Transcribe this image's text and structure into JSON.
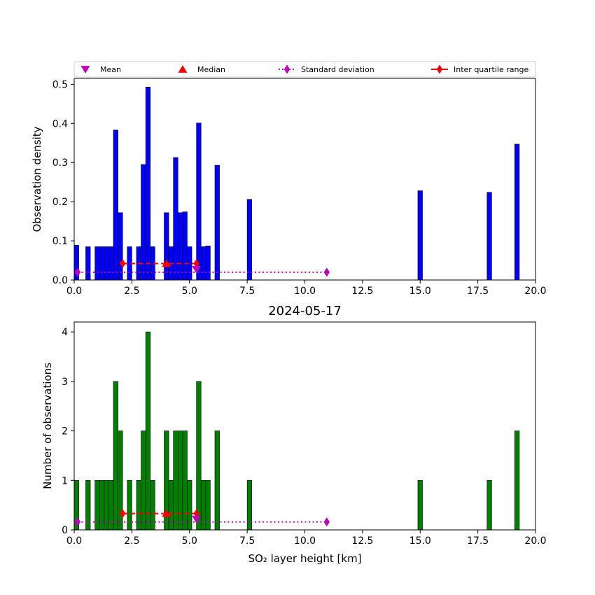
{
  "chart_data": [
    {
      "type": "bar",
      "title": "",
      "xlabel": "",
      "ylabel": "Observation density",
      "xlim": [
        0,
        20
      ],
      "ylim": [
        0,
        0.515
      ],
      "xticks": [
        "0.0",
        "2.5",
        "5.0",
        "7.5",
        "10.0",
        "12.5",
        "15.0",
        "17.5",
        "20.0"
      ],
      "yticks": [
        "0.0",
        "0.1",
        "0.2",
        "0.3",
        "0.4",
        "0.5"
      ],
      "bar_color": "#0000ff",
      "bin_width": 0.2,
      "bins": [
        {
          "x": 0.0,
          "value": 0.089
        },
        {
          "x": 0.5,
          "value": 0.085
        },
        {
          "x": 0.9,
          "value": 0.085
        },
        {
          "x": 1.1,
          "value": 0.085
        },
        {
          "x": 1.3,
          "value": 0.085
        },
        {
          "x": 1.5,
          "value": 0.085
        },
        {
          "x": 1.7,
          "value": 0.383
        },
        {
          "x": 1.9,
          "value": 0.172
        },
        {
          "x": 2.3,
          "value": 0.085
        },
        {
          "x": 2.7,
          "value": 0.085
        },
        {
          "x": 2.9,
          "value": 0.295
        },
        {
          "x": 3.1,
          "value": 0.493
        },
        {
          "x": 3.3,
          "value": 0.085
        },
        {
          "x": 3.9,
          "value": 0.172
        },
        {
          "x": 4.1,
          "value": 0.085
        },
        {
          "x": 4.3,
          "value": 0.313
        },
        {
          "x": 4.5,
          "value": 0.172
        },
        {
          "x": 4.7,
          "value": 0.174
        },
        {
          "x": 4.9,
          "value": 0.085
        },
        {
          "x": 5.3,
          "value": 0.401
        },
        {
          "x": 5.5,
          "value": 0.085
        },
        {
          "x": 5.7,
          "value": 0.087
        },
        {
          "x": 6.1,
          "value": 0.293
        },
        {
          "x": 7.5,
          "value": 0.206
        },
        {
          "x": 14.9,
          "value": 0.228
        },
        {
          "x": 17.9,
          "value": 0.224
        },
        {
          "x": 19.1,
          "value": 0.347
        }
      ],
      "stats": {
        "mean_x": 5.3,
        "median_x": 4.0,
        "std_range": [
          0.15,
          10.95
        ],
        "iqr_range": [
          2.1,
          5.3
        ],
        "stats_y": 0.02,
        "iqr_y": 0.042
      },
      "legend": {
        "placement": "top (above axes)",
        "entries": [
          {
            "label": "Mean",
            "marker": "triangle-down",
            "color": "#bf00bf"
          },
          {
            "label": "Median",
            "marker": "triangle-up",
            "color": "#ff0000"
          },
          {
            "label": "Standard deviation",
            "marker": "diamond-dotted",
            "color": "#bf00bf"
          },
          {
            "label": "Inter quartile range",
            "marker": "diamond-solid",
            "color": "#ff0000"
          }
        ]
      }
    },
    {
      "type": "bar",
      "title": "2024-05-17",
      "xlabel": "SO₂ layer height [km]",
      "ylabel": "Number of observations",
      "xlim": [
        0,
        20
      ],
      "ylim": [
        0,
        4.2
      ],
      "xticks": [
        "0.0",
        "2.5",
        "5.0",
        "7.5",
        "10.0",
        "12.5",
        "15.0",
        "17.5",
        "20.0"
      ],
      "yticks": [
        "0",
        "1",
        "2",
        "3",
        "4"
      ],
      "bar_color": "#008000",
      "bin_width": 0.2,
      "bins": [
        {
          "x": 0.0,
          "value": 1
        },
        {
          "x": 0.5,
          "value": 1
        },
        {
          "x": 0.9,
          "value": 1
        },
        {
          "x": 1.1,
          "value": 1
        },
        {
          "x": 1.3,
          "value": 1
        },
        {
          "x": 1.5,
          "value": 1
        },
        {
          "x": 1.7,
          "value": 3
        },
        {
          "x": 1.9,
          "value": 2
        },
        {
          "x": 2.3,
          "value": 1
        },
        {
          "x": 2.7,
          "value": 1
        },
        {
          "x": 2.9,
          "value": 2
        },
        {
          "x": 3.1,
          "value": 4
        },
        {
          "x": 3.3,
          "value": 1
        },
        {
          "x": 3.9,
          "value": 2
        },
        {
          "x": 4.1,
          "value": 1
        },
        {
          "x": 4.3,
          "value": 2
        },
        {
          "x": 4.5,
          "value": 2
        },
        {
          "x": 4.7,
          "value": 2
        },
        {
          "x": 4.9,
          "value": 1
        },
        {
          "x": 5.3,
          "value": 3
        },
        {
          "x": 5.5,
          "value": 1
        },
        {
          "x": 5.7,
          "value": 1
        },
        {
          "x": 6.1,
          "value": 2
        },
        {
          "x": 7.5,
          "value": 1
        },
        {
          "x": 14.9,
          "value": 1
        },
        {
          "x": 17.9,
          "value": 1
        },
        {
          "x": 19.1,
          "value": 2
        }
      ],
      "stats": {
        "mean_x": 5.3,
        "median_x": 4.0,
        "std_range": [
          0.15,
          10.95
        ],
        "iqr_range": [
          2.1,
          5.3
        ],
        "stats_y": 0.16,
        "iqr_y": 0.33
      }
    }
  ]
}
